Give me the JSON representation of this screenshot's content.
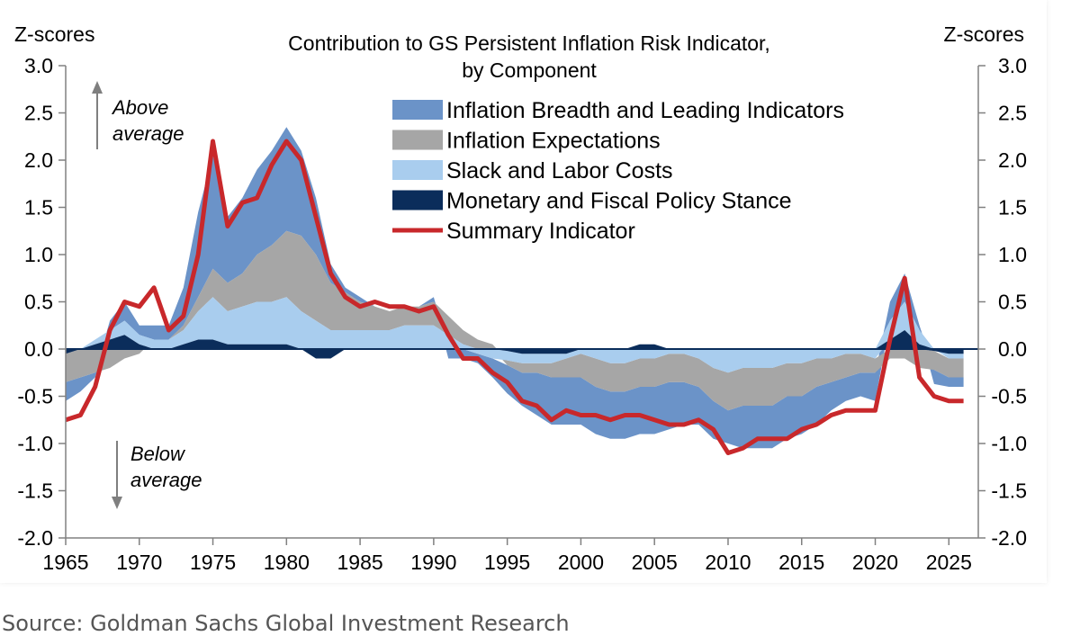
{
  "source_note": "Source: Goldman Sachs Global Investment Research",
  "chart_data": {
    "type": "area",
    "title_lines": [
      "Contribution  to GS Persistent Inflation  Risk Indicator,",
      "by Component"
    ],
    "y_left_label": "Z-scores",
    "y_right_label": "Z-scores",
    "ylim": [
      -2.0,
      3.0
    ],
    "y_ticks": [
      "3.0",
      "2.5",
      "2.0",
      "1.5",
      "1.0",
      "0.5",
      "0.0",
      "-0.5",
      "-1.0",
      "-1.5",
      "-2.0"
    ],
    "xlim": [
      1965,
      2027
    ],
    "x_ticks": [
      "1965",
      "1970",
      "1975",
      "1980",
      "1985",
      "1990",
      "1995",
      "2000",
      "2005",
      "2010",
      "2015",
      "2020",
      "2025"
    ],
    "annotations": {
      "above_line1": "Above",
      "above_line2": "average",
      "below_line1": "Below",
      "below_line2": "average"
    },
    "legend_position": "top-center",
    "grid": false,
    "x": [
      1965,
      1966,
      1967,
      1968,
      1969,
      1970,
      1971,
      1972,
      1973,
      1974,
      1975,
      1976,
      1977,
      1978,
      1979,
      1980,
      1981,
      1982,
      1983,
      1984,
      1985,
      1986,
      1987,
      1988,
      1989,
      1990,
      1991,
      1992,
      1993,
      1994,
      1995,
      1996,
      1997,
      1998,
      1999,
      2000,
      2001,
      2002,
      2003,
      2004,
      2005,
      2006,
      2007,
      2008,
      2009,
      2010,
      2011,
      2012,
      2013,
      2014,
      2015,
      2016,
      2017,
      2018,
      2019,
      2020,
      2021,
      2022,
      2023,
      2024,
      2025,
      2026
    ],
    "series": [
      {
        "name": "Inflation Breadth and Leading Indicators",
        "color": "#6b93c8",
        "values": [
          -0.2,
          -0.15,
          -0.05,
          0.1,
          0.2,
          0.1,
          0.15,
          0.15,
          0.4,
          0.9,
          1.2,
          0.7,
          0.8,
          0.9,
          1.0,
          1.1,
          0.9,
          0.6,
          0.2,
          0.05,
          0.05,
          0.0,
          0.0,
          0.0,
          0.0,
          0.05,
          -0.1,
          -0.1,
          -0.1,
          -0.2,
          -0.3,
          -0.35,
          -0.45,
          -0.5,
          -0.5,
          -0.5,
          -0.5,
          -0.5,
          -0.5,
          -0.5,
          -0.5,
          -0.5,
          -0.45,
          -0.4,
          -0.4,
          -0.35,
          -0.45,
          -0.45,
          -0.45,
          -0.45,
          -0.4,
          -0.4,
          -0.3,
          -0.25,
          -0.25,
          -0.3,
          0.2,
          0.3,
          0.05,
          -0.15,
          -0.1,
          -0.1
        ]
      },
      {
        "name": "Inflation Expectations",
        "color": "#a6a6a6",
        "values": [
          -0.3,
          -0.3,
          -0.25,
          -0.2,
          -0.1,
          -0.05,
          0.0,
          0.0,
          0.05,
          0.15,
          0.3,
          0.3,
          0.35,
          0.5,
          0.6,
          0.7,
          0.8,
          0.7,
          0.5,
          0.4,
          0.3,
          0.25,
          0.2,
          0.2,
          0.2,
          0.25,
          0.2,
          0.15,
          0.1,
          0.05,
          -0.05,
          -0.1,
          -0.1,
          -0.15,
          -0.2,
          -0.25,
          -0.3,
          -0.3,
          -0.3,
          -0.3,
          -0.3,
          -0.3,
          -0.3,
          -0.3,
          -0.35,
          -0.4,
          -0.4,
          -0.4,
          -0.4,
          -0.35,
          -0.35,
          -0.3,
          -0.25,
          -0.25,
          -0.2,
          -0.15,
          -0.1,
          -0.1,
          -0.2,
          -0.2,
          -0.2,
          -0.2
        ]
      },
      {
        "name": "Slack and Labor Costs",
        "color": "#a9cdee",
        "values": [
          0.0,
          0.0,
          0.05,
          0.1,
          0.15,
          0.1,
          0.1,
          0.1,
          0.15,
          0.3,
          0.45,
          0.35,
          0.4,
          0.45,
          0.45,
          0.5,
          0.4,
          0.3,
          0.2,
          0.2,
          0.2,
          0.2,
          0.2,
          0.25,
          0.25,
          0.25,
          0.15,
          0.05,
          -0.05,
          -0.1,
          -0.1,
          -0.1,
          -0.1,
          -0.1,
          -0.05,
          -0.05,
          -0.1,
          -0.15,
          -0.15,
          -0.1,
          -0.1,
          -0.05,
          -0.05,
          -0.1,
          -0.2,
          -0.25,
          -0.2,
          -0.2,
          -0.2,
          -0.15,
          -0.15,
          -0.1,
          -0.1,
          -0.05,
          -0.05,
          -0.1,
          0.2,
          0.3,
          0.15,
          0.0,
          -0.05,
          -0.05
        ]
      },
      {
        "name": "Monetary and Fiscal Policy Stance",
        "color": "#0b2d5b",
        "values": [
          -0.05,
          0.0,
          0.05,
          0.1,
          0.15,
          0.05,
          0.0,
          0.0,
          0.05,
          0.1,
          0.1,
          0.05,
          0.05,
          0.05,
          0.05,
          0.05,
          0.0,
          -0.1,
          -0.1,
          0.0,
          0.0,
          0.0,
          0.0,
          0.0,
          0.0,
          0.0,
          0.0,
          0.0,
          0.0,
          0.0,
          -0.02,
          -0.05,
          -0.05,
          -0.05,
          -0.05,
          0.0,
          0.0,
          0.0,
          0.0,
          0.05,
          0.05,
          0.0,
          0.0,
          0.0,
          0.0,
          0.0,
          0.0,
          0.0,
          0.0,
          0.0,
          0.0,
          0.0,
          0.0,
          0.0,
          0.0,
          0.0,
          0.1,
          0.2,
          0.05,
          -0.02,
          -0.05,
          -0.05
        ]
      }
    ],
    "summary_indicator": {
      "name": "Summary Indicator",
      "color": "#c8282b",
      "values": [
        -0.75,
        -0.7,
        -0.4,
        0.2,
        0.5,
        0.45,
        0.65,
        0.2,
        0.35,
        1.0,
        2.2,
        1.3,
        1.55,
        1.6,
        1.95,
        2.2,
        2.0,
        1.4,
        0.8,
        0.55,
        0.45,
        0.5,
        0.45,
        0.45,
        0.4,
        0.45,
        0.15,
        -0.1,
        -0.1,
        -0.25,
        -0.35,
        -0.55,
        -0.6,
        -0.75,
        -0.65,
        -0.7,
        -0.7,
        -0.75,
        -0.7,
        -0.7,
        -0.75,
        -0.8,
        -0.8,
        -0.75,
        -0.85,
        -1.1,
        -1.05,
        -0.95,
        -0.95,
        -0.95,
        -0.85,
        -0.8,
        -0.7,
        -0.65,
        -0.65,
        -0.65,
        0.1,
        0.75,
        -0.3,
        -0.5,
        -0.55,
        -0.55
      ]
    }
  }
}
